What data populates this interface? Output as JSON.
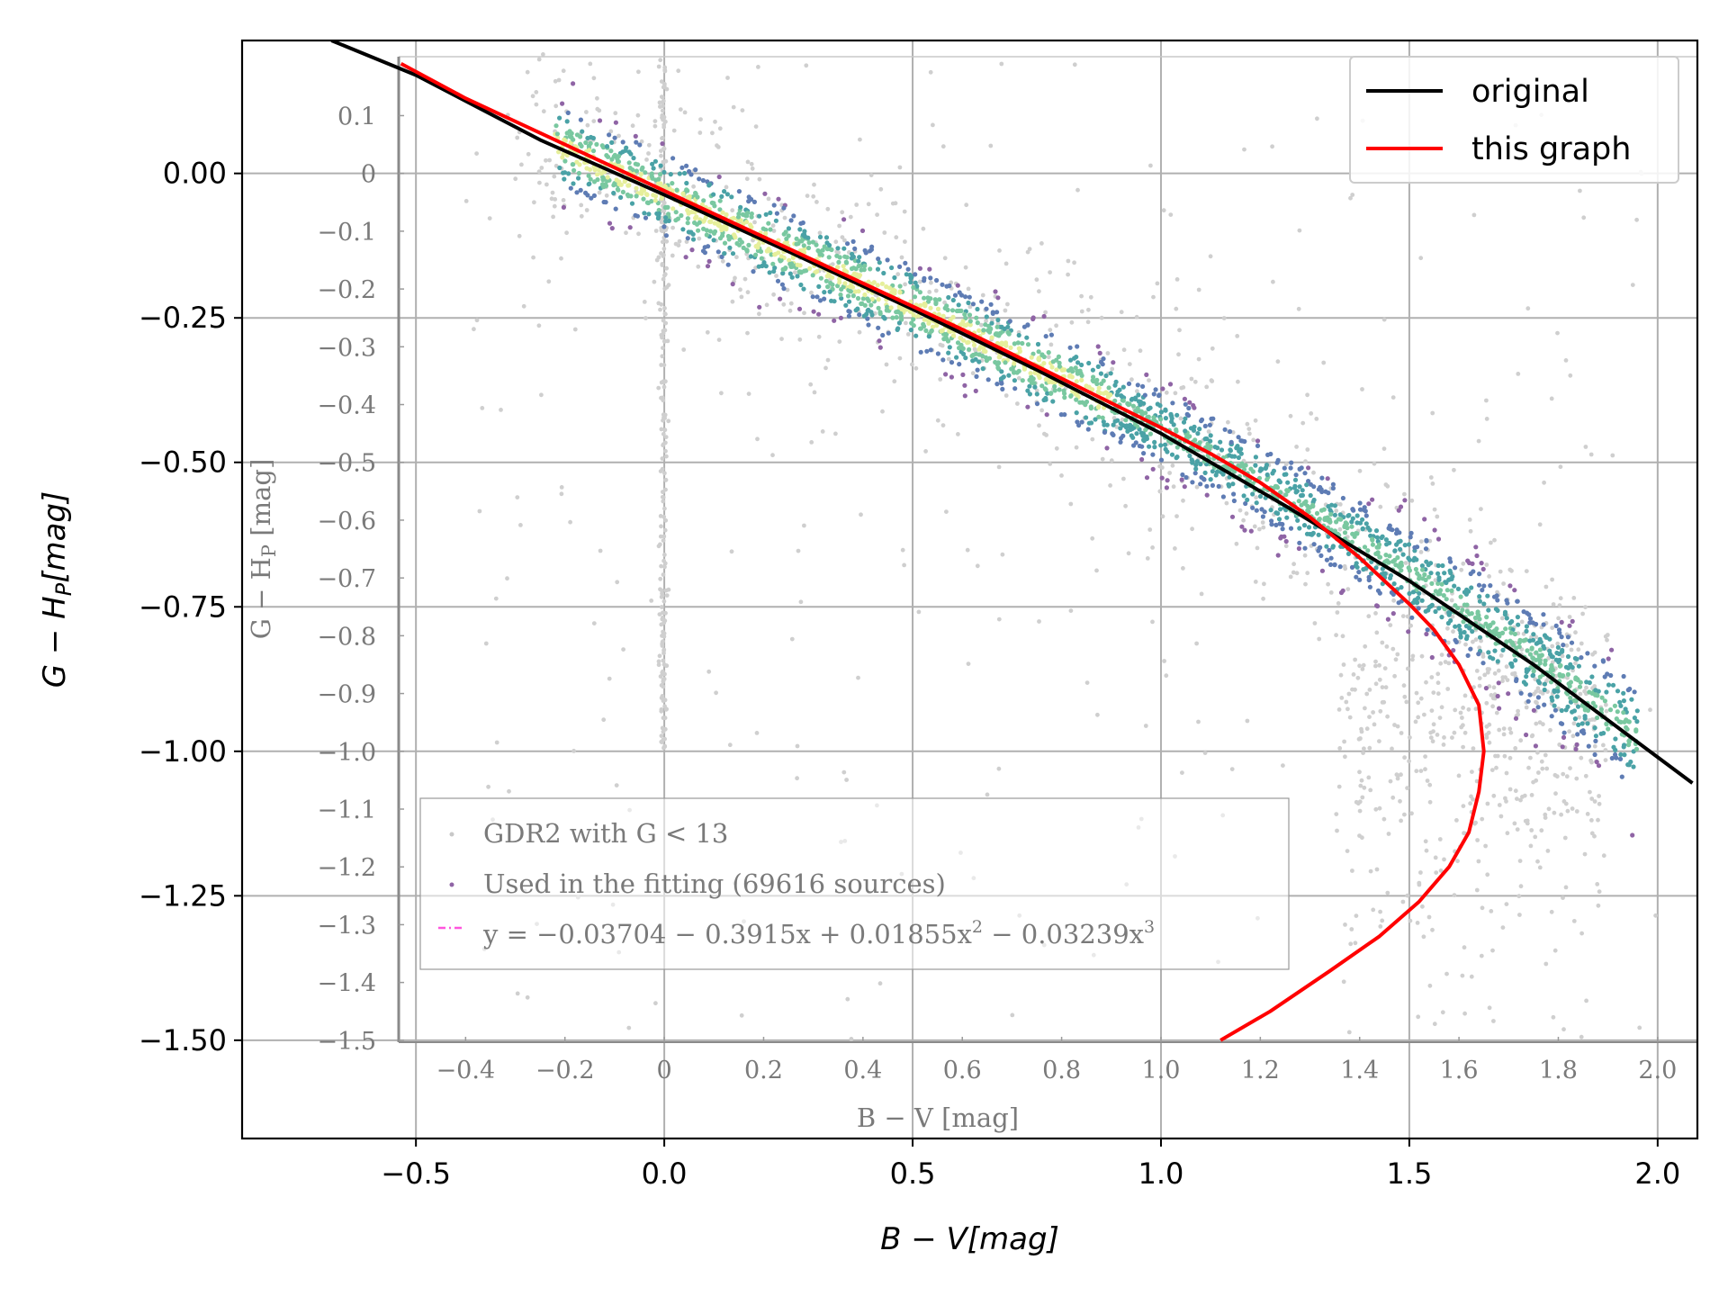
{
  "chart_data": {
    "type": "scatter",
    "title": "",
    "xlabel": "B − V[mag]",
    "ylabel": "G − H_P[mag]",
    "xlim": [
      -0.85,
      2.08
    ],
    "ylim": [
      -1.67,
      0.23
    ],
    "x_ticks": [
      {
        "value": -0.5,
        "label": "−0.5"
      },
      {
        "value": 0.0,
        "label": "0.0"
      },
      {
        "value": 0.5,
        "label": "0.5"
      },
      {
        "value": 1.0,
        "label": "1.0"
      },
      {
        "value": 1.5,
        "label": "1.5"
      },
      {
        "value": 2.0,
        "label": "2.0"
      }
    ],
    "y_ticks": [
      {
        "value": 0.0,
        "label": "0.00"
      },
      {
        "value": -0.25,
        "label": "−0.25"
      },
      {
        "value": -0.5,
        "label": "−0.50"
      },
      {
        "value": -0.75,
        "label": "−0.75"
      },
      {
        "value": -1.0,
        "label": "−1.00"
      },
      {
        "value": -1.25,
        "label": "−1.25"
      },
      {
        "value": -1.5,
        "label": "−1.50"
      }
    ],
    "grid": true,
    "legend": {
      "placement": "top-right",
      "entries": [
        {
          "label": "original",
          "color": "#000000"
        },
        {
          "label": "this graph",
          "color": "#ff0000"
        }
      ]
    },
    "series": [
      {
        "name": "original",
        "type": "line",
        "color": "#000000",
        "x": [
          -0.67,
          -0.5,
          -0.25,
          0.0,
          0.25,
          0.5,
          0.75,
          1.0,
          1.25,
          1.5,
          1.75,
          2.07
        ],
        "y": [
          0.23,
          0.17,
          0.058,
          -0.037,
          -0.135,
          -0.235,
          -0.34,
          -0.45,
          -0.575,
          -0.705,
          -0.85,
          -1.055
        ]
      },
      {
        "name": "this graph",
        "type": "line",
        "color": "#ff0000",
        "x": [
          -0.53,
          -0.4,
          -0.2,
          0.0,
          0.2,
          0.4,
          0.6,
          0.8,
          1.0,
          1.1,
          1.2,
          1.3,
          1.4,
          1.5,
          1.55,
          1.6,
          1.64,
          1.65,
          1.64,
          1.62,
          1.58,
          1.52,
          1.44,
          1.34,
          1.22,
          1.12
        ],
        "y": [
          0.19,
          0.13,
          0.05,
          -0.03,
          -0.11,
          -0.19,
          -0.27,
          -0.355,
          -0.44,
          -0.485,
          -0.535,
          -0.595,
          -0.665,
          -0.745,
          -0.79,
          -0.85,
          -0.92,
          -1.0,
          -1.07,
          -1.14,
          -1.2,
          -1.26,
          -1.32,
          -1.38,
          -1.45,
          -1.5
        ]
      },
      {
        "name": "GDR2 with G < 13",
        "type": "scatter",
        "color": "#cccccc",
        "count": 1500
      },
      {
        "name": "Used in the fitting (69616 sources)",
        "type": "density-scatter",
        "color": "#8f64a5",
        "colormap": [
          "#8f64a5",
          "#5e7cb4",
          "#4aa2a6",
          "#79c8a0",
          "#e6ef9b"
        ]
      }
    ],
    "inset": {
      "xlabel": "B − V [mag]",
      "ylabel": "G − H",
      "ylabel_sub": "P",
      "ylabel_unit": " [mag]",
      "x_ticks": [
        "−0.4",
        "−0.2",
        "0",
        "0.2",
        "0.4",
        "0.6",
        "0.8",
        "1.0",
        "1.2",
        "1.4",
        "1.6",
        "1.8",
        "2.0"
      ],
      "y_ticks": [
        "0.1",
        "0",
        "−0.1",
        "−0.2",
        "−0.3",
        "−0.4",
        "−0.5",
        "−0.6",
        "−0.7",
        "−0.8",
        "−0.9",
        "−1.0",
        "−1.1",
        "−1.2",
        "−1.3",
        "−1.4",
        "−1.5"
      ],
      "legend": [
        {
          "label": "GDR2 with G < 13",
          "color": "#c8c8c8"
        },
        {
          "label": "Used in the fitting (69616 sources)",
          "color": "#8f64a5"
        },
        {
          "label": "y = −0.03704 − 0.3915x + 0.01855x",
          "sup1": "2",
          "mid": " − 0.03239x",
          "sup2": "3",
          "color": "#ff55dd"
        }
      ]
    }
  }
}
